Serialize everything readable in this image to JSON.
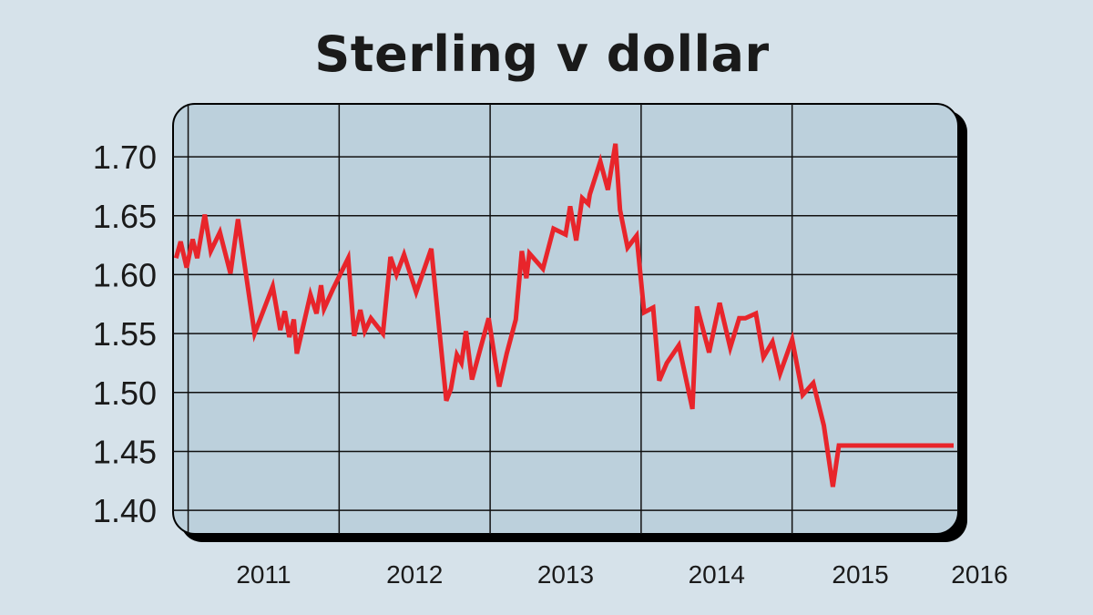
{
  "chart_data": {
    "type": "line",
    "title": "Sterling v dollar",
    "xlabel": "",
    "ylabel": "",
    "xlim": [
      2010.9,
      2016.1
    ],
    "ylim": [
      1.38,
      1.7449
    ],
    "y_ticks": [
      "1.70",
      "1.65",
      "1.60",
      "1.55",
      "1.50",
      "1.45",
      "1.40"
    ],
    "y_tick_values": [
      1.7,
      1.65,
      1.6,
      1.55,
      1.5,
      1.45,
      1.4
    ],
    "x_ticks": [
      "2011",
      "2012",
      "2013",
      "2014",
      "2015",
      "2016"
    ],
    "x_tick_values": [
      2011,
      2012,
      2013,
      2014,
      2015,
      2016
    ],
    "grid": true,
    "line_color": "#e8252b",
    "series": [
      {
        "x": [
          2010.92,
          2010.95,
          2010.99,
          2011.03,
          2011.06,
          2011.11,
          2011.15,
          2011.21,
          2011.28,
          2011.33,
          2011.44,
          2011.56,
          2011.61,
          2011.64,
          2011.67,
          2011.7,
          2011.72,
          2011.81,
          2011.85,
          2011.88,
          2011.9,
          2011.96,
          2012.06,
          2012.1,
          2012.14,
          2012.17,
          2012.21,
          2012.29,
          2012.34,
          2012.38,
          2012.43,
          2012.51,
          2012.61,
          2012.71,
          2012.74,
          2012.78,
          2012.81,
          2012.84,
          2012.88,
          2012.99,
          2013.06,
          2013.11,
          2013.17,
          2013.21,
          2013.24,
          2013.26,
          2013.35,
          2013.42,
          2013.5,
          2013.53,
          2013.57,
          2013.61,
          2013.65,
          2013.66,
          2013.69,
          2013.73,
          2013.78,
          2013.83,
          2013.86,
          2013.91,
          2013.97,
          2014.02,
          2014.08,
          2014.12,
          2014.17,
          2014.25,
          2014.34,
          2014.37,
          2014.45,
          2014.52,
          2014.59,
          2014.65,
          2014.69,
          2014.76,
          2014.81,
          2014.87,
          2014.92,
          2015.0,
          2015.07,
          2015.14,
          2015.21,
          2015.27,
          2015.31,
          2015.36,
          2015.42,
          2015.49,
          2015.54,
          2015.58,
          2015.61,
          2015.65,
          2015.69,
          2015.75,
          2015.82,
          2015.87,
          2015.91,
          2016.0,
          2016.04,
          2016.07
        ],
        "y": [
          1.614,
          1.628,
          1.606,
          1.63,
          1.614,
          1.651,
          1.62,
          1.636,
          1.601,
          1.647,
          1.55,
          1.59,
          1.553,
          1.569,
          1.547,
          1.562,
          1.533,
          1.583,
          1.567,
          1.591,
          1.571,
          1.588,
          1.614,
          1.548,
          1.57,
          1.552,
          1.563,
          1.55,
          1.615,
          1.6,
          1.617,
          1.585,
          1.622,
          1.493,
          1.503,
          1.532,
          1.525,
          1.552,
          1.511,
          1.563,
          1.505,
          1.533,
          1.562,
          1.62,
          1.597,
          1.618,
          1.605,
          1.639,
          1.634,
          1.658,
          1.629,
          1.665,
          1.66,
          1.668,
          1.68,
          1.696,
          1.672,
          1.711,
          1.655,
          1.623,
          1.633,
          1.568,
          1.572,
          1.51,
          1.525,
          1.54,
          1.486,
          1.573,
          1.534,
          1.576,
          1.538,
          1.563,
          1.563,
          1.567,
          1.53,
          1.543,
          1.516,
          1.545,
          1.498,
          1.508,
          1.472,
          1.42,
          1.455,
          1.455,
          1.455,
          1.455,
          1.455,
          1.455,
          1.455,
          1.455,
          1.455,
          1.455,
          1.455,
          1.455,
          1.455,
          1.455,
          1.455,
          1.455
        ]
      }
    ]
  }
}
